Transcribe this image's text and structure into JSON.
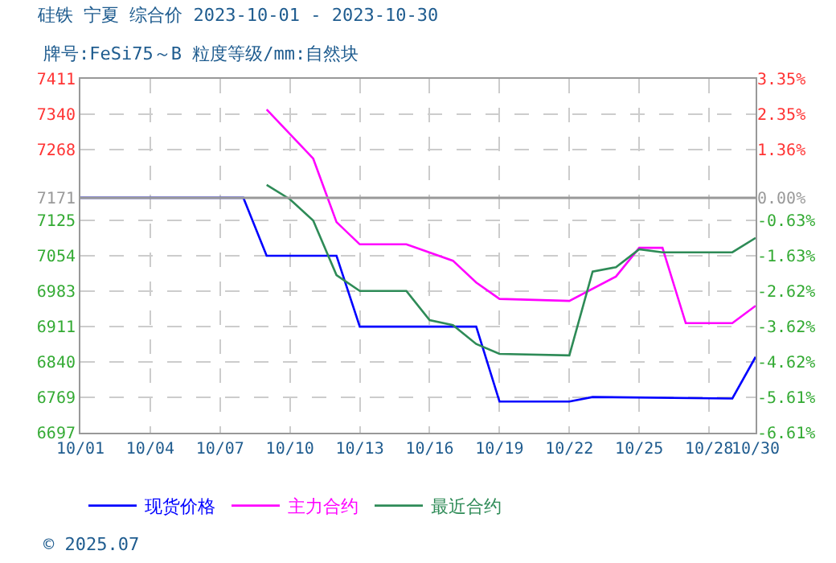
{
  "chart_data": {
    "type": "line",
    "title": "硅铁 宁夏 综合价 2023-10-01 - 2023-10-30",
    "subtitle": "牌号:FeSi75～B 粒度等级/mm:自然块",
    "annotations": [
      "© 2025.07"
    ],
    "xlim": [
      "2023-10-01",
      "2023-10-30"
    ],
    "xticks": [
      {
        "value": "2023-10-01",
        "label": "10/01"
      },
      {
        "value": "2023-10-04",
        "label": "10/04"
      },
      {
        "value": "2023-10-07",
        "label": "10/07"
      },
      {
        "value": "2023-10-10",
        "label": "10/10"
      },
      {
        "value": "2023-10-13",
        "label": "10/13"
      },
      {
        "value": "2023-10-16",
        "label": "10/16"
      },
      {
        "value": "2023-10-19",
        "label": "10/19"
      },
      {
        "value": "2023-10-22",
        "label": "10/22"
      },
      {
        "value": "2023-10-25",
        "label": "10/25"
      },
      {
        "value": "2023-10-28",
        "label": "10/28"
      },
      {
        "value": "2023-10-30",
        "label": "10/30"
      }
    ],
    "ylim": [
      6697,
      7411
    ],
    "yticks": [
      6697,
      6769,
      6840,
      6911,
      6983,
      7054,
      7125,
      7171,
      7268,
      7340,
      7411
    ],
    "y2lim": [
      -6.61,
      3.35
    ],
    "y2ticks": [
      {
        "value": -6.61,
        "label": "-6.61%"
      },
      {
        "value": -5.61,
        "label": "-5.61%"
      },
      {
        "value": -4.62,
        "label": "-4.62%"
      },
      {
        "value": -3.62,
        "label": "-3.62%"
      },
      {
        "value": -2.62,
        "label": "-2.62%"
      },
      {
        "value": -1.63,
        "label": "-1.63%"
      },
      {
        "value": -0.63,
        "label": "-0.63%"
      },
      {
        "value": 0,
        "label": "0.00%"
      },
      {
        "value": 1.36,
        "label": "1.36%"
      },
      {
        "value": 2.35,
        "label": "2.35%"
      },
      {
        "value": 3.35,
        "label": "3.35%"
      }
    ],
    "ref_lines": [
      {
        "axis": "y",
        "value": 7171,
        "color": "#999999"
      }
    ],
    "grid": true,
    "legend": "bottom",
    "marker": "none",
    "line_style": "solid",
    "series": [
      {
        "name": "现货价格",
        "color": "#0000ff",
        "x": [
          "2023-10-01",
          "2023-10-08",
          "2023-10-09",
          "2023-10-12",
          "2023-10-13",
          "2023-10-18",
          "2023-10-19",
          "2023-10-22",
          "2023-10-23",
          "2023-10-29",
          "2023-10-30"
        ],
        "values": [
          7171,
          7171,
          7054,
          7054,
          6911,
          6911,
          6760,
          6760,
          6769,
          6766,
          6850
        ]
      },
      {
        "name": "主力合约",
        "color": "#ff00ff",
        "x": [
          "2023-10-09",
          "2023-10-11",
          "2023-10-12",
          "2023-10-13",
          "2023-10-15",
          "2023-10-17",
          "2023-10-18",
          "2023-10-19",
          "2023-10-22",
          "2023-10-24",
          "2023-10-25",
          "2023-10-26",
          "2023-10-27",
          "2023-10-29",
          "2023-10-30"
        ],
        "values": [
          7349,
          7250,
          7122,
          7077,
          7077,
          7044,
          7000,
          6967,
          6963,
          7012,
          7070,
          7070,
          6918,
          6918,
          6953
        ]
      },
      {
        "name": "最近合约",
        "color": "#2e8b57",
        "x": [
          "2023-10-09",
          "2023-10-10",
          "2023-10-11",
          "2023-10-12",
          "2023-10-13",
          "2023-10-15",
          "2023-10-16",
          "2023-10-17",
          "2023-10-18",
          "2023-10-19",
          "2023-10-22",
          "2023-10-23",
          "2023-10-24",
          "2023-10-25",
          "2023-10-26",
          "2023-10-29",
          "2023-10-30"
        ],
        "values": [
          7197,
          7168,
          7125,
          7015,
          6983,
          6983,
          6924,
          6914,
          6876,
          6856,
          6853,
          7022,
          7031,
          7067,
          7061,
          7061,
          7090
        ]
      }
    ]
  }
}
